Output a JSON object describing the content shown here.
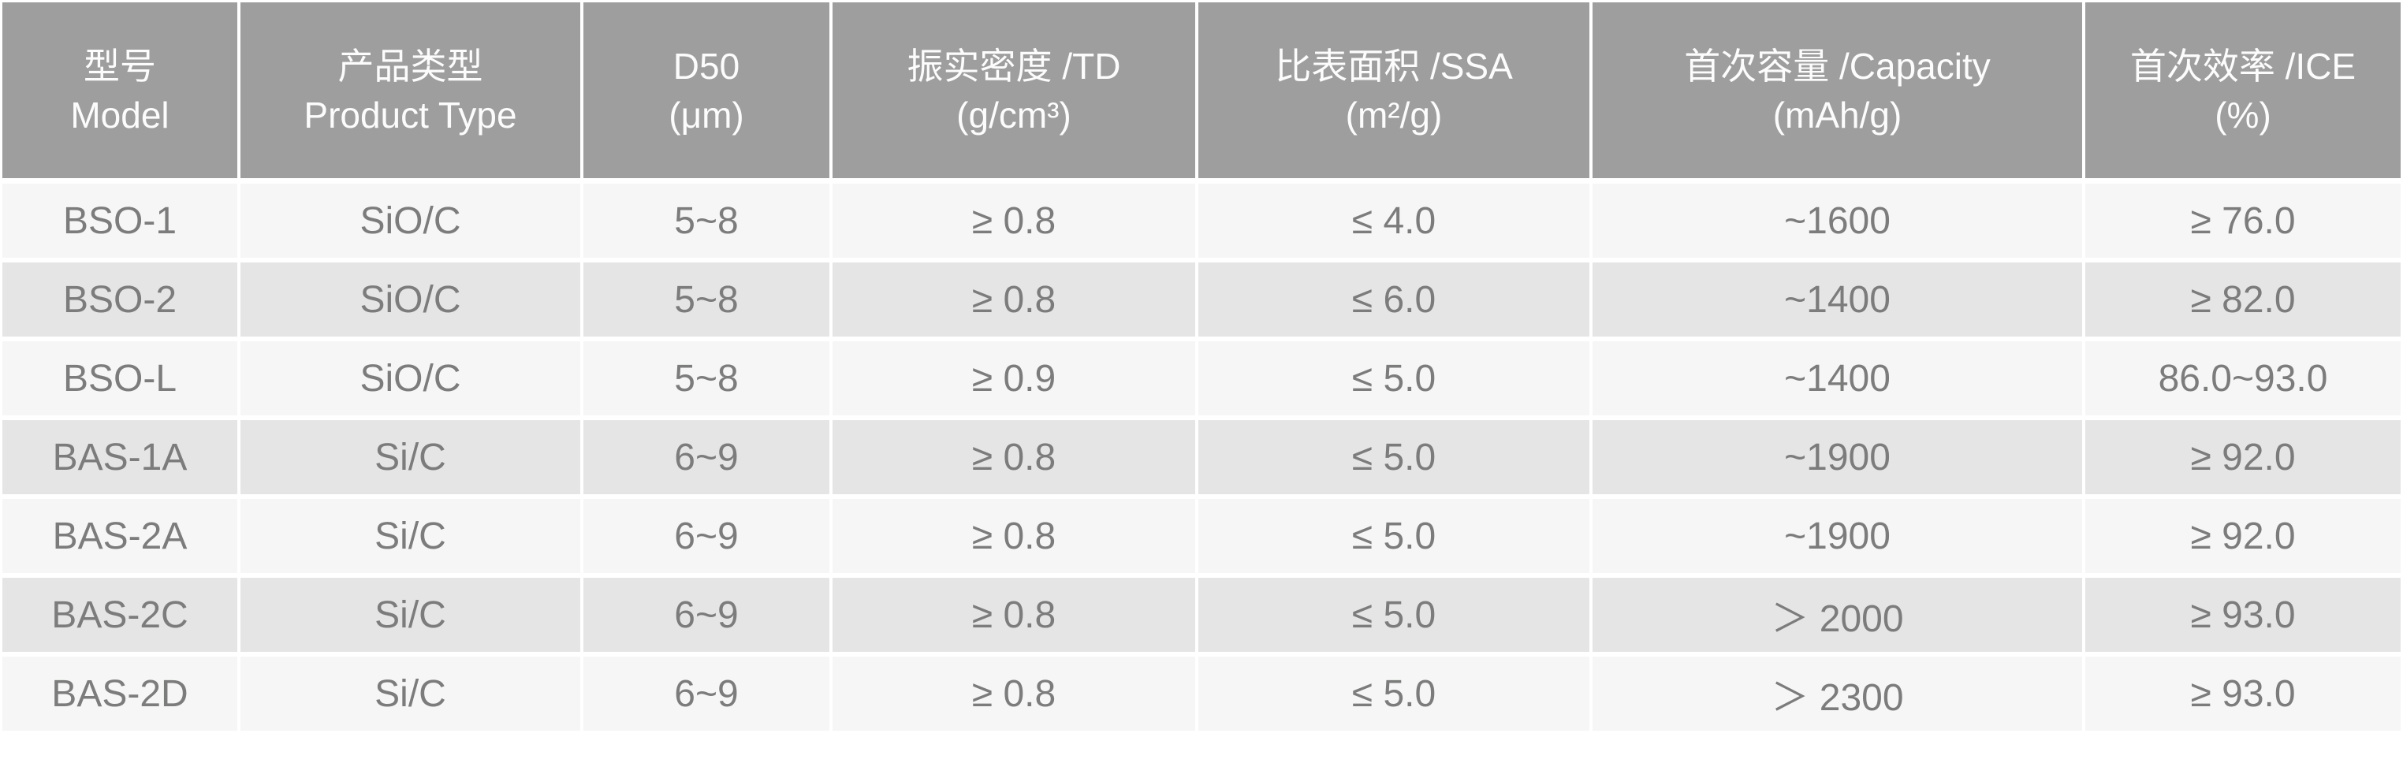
{
  "chart_data": {
    "type": "table",
    "title": "",
    "columns": [
      {
        "key": "model",
        "zh": "型号",
        "en": "Model"
      },
      {
        "key": "product_type",
        "zh": "产品类型",
        "en": "Product Type"
      },
      {
        "key": "d50",
        "zh": "D50",
        "en": "(μm)"
      },
      {
        "key": "td",
        "zh": "振实密度 /TD",
        "en": "(g/cm³)"
      },
      {
        "key": "ssa",
        "zh": "比表面积 /SSA",
        "en": "(m²/g)"
      },
      {
        "key": "capacity",
        "zh": "首次容量 /Capacity",
        "en": "(mAh/g)"
      },
      {
        "key": "ice",
        "zh": "首次效率 /ICE",
        "en": "(%)"
      }
    ],
    "rows": [
      {
        "model": "BSO-1",
        "product_type": "SiO/C",
        "d50": "5~8",
        "td": "≥ 0.8",
        "ssa": "≤ 4.0",
        "capacity": "~1600",
        "ice": "≥ 76.0"
      },
      {
        "model": "BSO-2",
        "product_type": "SiO/C",
        "d50": "5~8",
        "td": "≥ 0.8",
        "ssa": "≤ 6.0",
        "capacity": "~1400",
        "ice": "≥ 82.0"
      },
      {
        "model": "BSO-L",
        "product_type": "SiO/C",
        "d50": "5~8",
        "td": "≥ 0.9",
        "ssa": "≤ 5.0",
        "capacity": "~1400",
        "ice": "86.0~93.0"
      },
      {
        "model": "BAS-1A",
        "product_type": "Si/C",
        "d50": "6~9",
        "td": "≥ 0.8",
        "ssa": "≤ 5.0",
        "capacity": "~1900",
        "ice": "≥ 92.0"
      },
      {
        "model": "BAS-2A",
        "product_type": "Si/C",
        "d50": "6~9",
        "td": "≥ 0.8",
        "ssa": "≤ 5.0",
        "capacity": "~1900",
        "ice": "≥ 92.0"
      },
      {
        "model": "BAS-2C",
        "product_type": "Si/C",
        "d50": "6~9",
        "td": "≥ 0.8",
        "ssa": "≤ 5.0",
        "capacity": "＞ 2000",
        "ice": "≥ 93.0"
      },
      {
        "model": "BAS-2D",
        "product_type": "Si/C",
        "d50": "6~9",
        "td": "≥ 0.8",
        "ssa": "≤ 5.0",
        "capacity": "＞ 2300",
        "ice": "≥ 93.0"
      }
    ]
  },
  "colors": {
    "header_bg": "#9e9e9e",
    "header_text": "#fcfcfc",
    "row_light_bg": "#f5f6f5",
    "row_dark_bg": "#e5e5e5",
    "body_text": "#7b7c7b",
    "divider": "#ffffff"
  }
}
